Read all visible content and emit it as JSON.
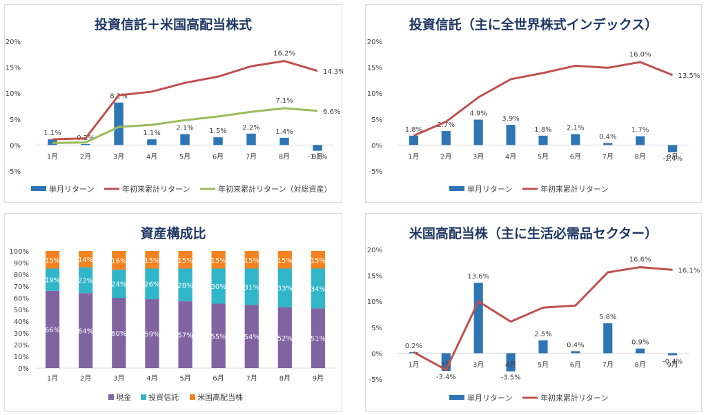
{
  "colors": {
    "bar": "#2e75b6",
    "line_red": "#c0504d",
    "line_green": "#9bbb59",
    "cash": "#8064a2",
    "fund": "#31b5c9",
    "us": "#f58220",
    "axis_text": "#404040",
    "grid": "#d9d9d9"
  },
  "chart_data": [
    {
      "type": "bar",
      "title": "投資信託＋米国高配当株式",
      "categories": [
        "1月",
        "2月",
        "3月",
        "4月",
        "5月",
        "6月",
        "7月",
        "8月",
        "9月"
      ],
      "ylim": [
        -5,
        20
      ],
      "yticks": [
        "20%",
        "15%",
        "10%",
        "5%",
        "0%",
        "-5%"
      ],
      "series": [
        {
          "name": "単月リターン",
          "kind": "bar",
          "values": [
            1.1,
            0.2,
            8.2,
            1.1,
            2.1,
            1.5,
            2.2,
            1.4,
            -1.1
          ],
          "labels": [
            "1.1%",
            "0.2%",
            "8.2%",
            "1.1%",
            "2.1%",
            "1.5%",
            "2.2%",
            "1.4%",
            "-1.1%"
          ]
        },
        {
          "name": "年初来累計リターン",
          "kind": "line",
          "values": [
            1.1,
            1.3,
            9.6,
            10.3,
            12.0,
            13.2,
            15.2,
            16.2,
            14.3
          ],
          "end_labels": {
            "7": "16.2%",
            "8": "14.3%"
          }
        },
        {
          "name": "年初来累計リターン（対総資産）",
          "kind": "line",
          "values": [
            0.4,
            0.5,
            3.5,
            3.9,
            4.8,
            5.5,
            6.4,
            7.1,
            6.6
          ],
          "end_labels": {
            "7": "7.1%",
            "8": "6.6%"
          }
        }
      ],
      "legend": [
        "単月リターン",
        "年初来累計リターン",
        "年初来累計リターン（対総資産）"
      ]
    },
    {
      "type": "bar",
      "title": "投資信託（主に全世界株式インデックス）",
      "categories": [
        "1月",
        "2月",
        "3月",
        "4月",
        "5月",
        "6月",
        "7月",
        "8月",
        "9月"
      ],
      "ylim": [
        -5,
        20
      ],
      "yticks": [
        "20%",
        "15%",
        "10%",
        "5%",
        "0%",
        "-5%"
      ],
      "series": [
        {
          "name": "単月リターン",
          "kind": "bar",
          "values": [
            1.8,
            2.7,
            4.9,
            3.9,
            1.8,
            2.1,
            0.4,
            1.7,
            -1.4
          ],
          "labels": [
            "1.8%",
            "2.7%",
            "4.9%",
            "3.9%",
            "1.8%",
            "2.1%",
            "0.4%",
            "1.7%",
            "-1.4%"
          ]
        },
        {
          "name": "年初来累計リターン",
          "kind": "line",
          "values": [
            1.8,
            4.5,
            9.2,
            12.7,
            13.9,
            15.3,
            14.9,
            16.0,
            13.5
          ],
          "end_labels": {
            "7": "16.0%",
            "8": "13.5%"
          }
        }
      ],
      "legend": [
        "単月リターン",
        "年初来累計リターン"
      ]
    },
    {
      "type": "bar",
      "stacked": true,
      "title": "資産構成比",
      "categories": [
        "1月",
        "2月",
        "3月",
        "4月",
        "5月",
        "6月",
        "7月",
        "8月",
        "9月"
      ],
      "ylim": [
        0,
        100
      ],
      "yticks": [
        "100%",
        "90%",
        "80%",
        "70%",
        "60%",
        "50%",
        "40%",
        "30%",
        "20%",
        "10%",
        "0%"
      ],
      "series": [
        {
          "name": "現金",
          "values": [
            66,
            64,
            60,
            59,
            57,
            55,
            54,
            52,
            51
          ],
          "labels": [
            "66%",
            "64%",
            "60%",
            "59%",
            "57%",
            "55%",
            "54%",
            "52%",
            "51%"
          ]
        },
        {
          "name": "投資信託",
          "values": [
            19,
            22,
            24,
            26,
            28,
            30,
            31,
            33,
            34
          ],
          "labels": [
            "19%",
            "22%",
            "24%",
            "26%",
            "28%",
            "30%",
            "31%",
            "33%",
            "34%"
          ]
        },
        {
          "name": "米国高配当株",
          "values": [
            15,
            14,
            16,
            15,
            15,
            15,
            15,
            15,
            15
          ],
          "labels": [
            "15%",
            "14%",
            "16%",
            "15%",
            "15%",
            "15%",
            "15%",
            "15%",
            "15%"
          ]
        }
      ],
      "legend": [
        "現金",
        "投資信託",
        "米国高配当株"
      ]
    },
    {
      "type": "bar",
      "title": "米国高配当株（主に生活必需品セクター）",
      "categories": [
        "1月",
        "2月",
        "3月",
        "4月",
        "5月",
        "6月",
        "7月",
        "8月",
        "9月"
      ],
      "ylim": [
        -5,
        20
      ],
      "yticks": [
        "20%",
        "15%",
        "10%",
        "5%",
        "0%",
        "-5%"
      ],
      "series": [
        {
          "name": "単月リターン",
          "kind": "bar",
          "values": [
            0.2,
            -3.4,
            13.6,
            -3.5,
            2.5,
            0.4,
            5.8,
            0.9,
            -0.4
          ],
          "labels": [
            "0.2%",
            "-3.4%",
            "13.6%",
            "-3.5%",
            "2.5%",
            "0.4%",
            "5.8%",
            "0.9%",
            "-0.4%"
          ]
        },
        {
          "name": "年初来累計リターン",
          "kind": "line",
          "values": [
            0.2,
            -3.2,
            10.0,
            6.1,
            8.8,
            9.2,
            15.6,
            16.6,
            16.1
          ],
          "end_labels": {
            "7": "16.6%",
            "8": "16.1%"
          }
        }
      ],
      "legend": [
        "単月リターン",
        "年初来累計リターン"
      ]
    }
  ]
}
